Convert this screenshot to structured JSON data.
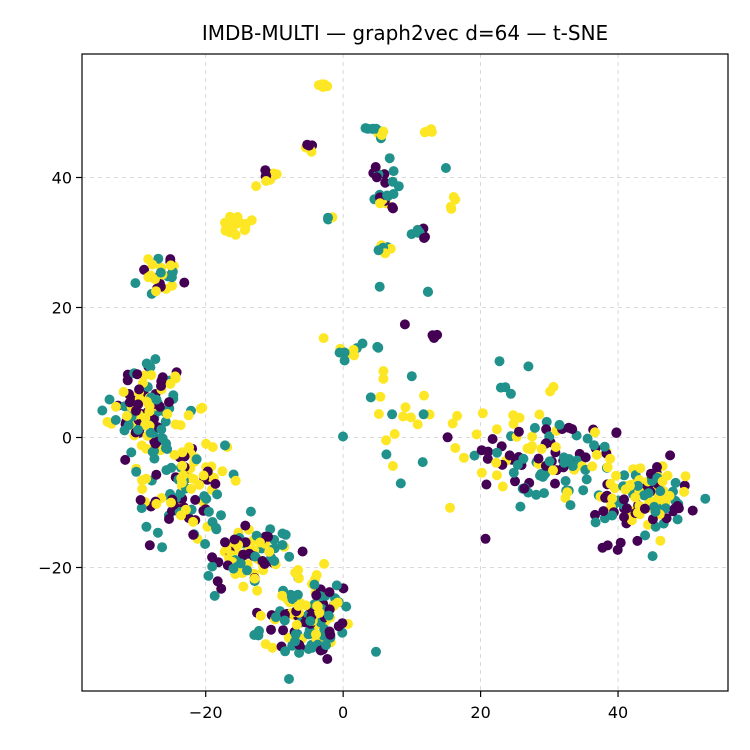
{
  "chart_data": {
    "type": "scatter",
    "title": "IMDB-MULTI — graph2vec d=64 — t-SNE",
    "xlabel": "",
    "ylabel": "",
    "xlim": [
      -38,
      56
    ],
    "ylim": [
      -39,
      59
    ],
    "xticks": [
      -20,
      0,
      20,
      40
    ],
    "yticks": [
      -20,
      0,
      20,
      40
    ],
    "x_tick_labels": [
      "−20",
      "0",
      "20",
      "40"
    ],
    "y_tick_labels": [
      "−20",
      "0",
      "20",
      "40"
    ],
    "grid": true,
    "legend": "none",
    "series": [
      {
        "color": "#440154",
        "clusters": [
          {
            "cx": -27,
            "cy": 25,
            "sx": 1.4,
            "sy": 1.6,
            "n": 8
          },
          {
            "cx": -11,
            "cy": 40.5,
            "sx": 1.0,
            "sy": 0.6,
            "n": 5
          },
          {
            "cx": -5,
            "cy": 44.8,
            "sx": 0.4,
            "sy": 0.3,
            "n": 3
          },
          {
            "cx": 5,
            "cy": 40,
            "sx": 1.2,
            "sy": 1.8,
            "n": 6
          },
          {
            "cx": 7,
            "cy": 36,
            "sx": 0.5,
            "sy": 1.0,
            "n": 3
          },
          {
            "cx": 12,
            "cy": 31,
            "sx": 0.6,
            "sy": 0.8,
            "n": 3
          },
          {
            "cx": 13,
            "cy": 15,
            "sx": 0.6,
            "sy": 0.8,
            "n": 3
          },
          {
            "cx": 9,
            "cy": 17,
            "sx": 0.3,
            "sy": 0.3,
            "n": 1
          },
          {
            "cx": -28,
            "cy": 5,
            "sx": 2.5,
            "sy": 3.5,
            "n": 35
          },
          {
            "cx": -24,
            "cy": -8,
            "sx": 3.0,
            "sy": 4.0,
            "n": 30
          },
          {
            "cx": -14,
            "cy": -18,
            "sx": 3.5,
            "sy": 3.0,
            "n": 28
          },
          {
            "cx": -5,
            "cy": -28,
            "sx": 3.5,
            "sy": 3.5,
            "n": 35
          },
          {
            "cx": 30,
            "cy": -3,
            "sx": 6.0,
            "sy": 3.0,
            "n": 40
          },
          {
            "cx": 44,
            "cy": -10,
            "sx": 4.0,
            "sy": 3.0,
            "n": 30
          },
          {
            "cx": 40,
            "cy": -16,
            "sx": 2.0,
            "sy": 1.2,
            "n": 5
          }
        ]
      },
      {
        "color": "#21918c",
        "clusters": [
          {
            "cx": -27,
            "cy": 25,
            "sx": 1.3,
            "sy": 1.5,
            "n": 8
          },
          {
            "cx": 5,
            "cy": 47,
            "sx": 0.8,
            "sy": 0.5,
            "n": 8
          },
          {
            "cx": 5,
            "cy": 39,
            "sx": 1.3,
            "sy": 1.7,
            "n": 10
          },
          {
            "cx": 11,
            "cy": 31.5,
            "sx": 0.6,
            "sy": 0.7,
            "n": 4
          },
          {
            "cx": 6,
            "cy": 29,
            "sx": 0.7,
            "sy": 0.6,
            "n": 4
          },
          {
            "cx": 15,
            "cy": 41.5,
            "sx": 0.2,
            "sy": 0.2,
            "n": 1
          },
          {
            "cx": 5,
            "cy": 23,
            "sx": 0.2,
            "sy": 0.2,
            "n": 1
          },
          {
            "cx": 12,
            "cy": 22.5,
            "sx": 0.4,
            "sy": 0.3,
            "n": 2
          },
          {
            "cx": 2,
            "cy": 13,
            "sx": 1.5,
            "sy": 1.5,
            "n": 6
          },
          {
            "cx": 6,
            "cy": 14,
            "sx": 0.5,
            "sy": 0.5,
            "n": 2
          },
          {
            "cx": -2,
            "cy": 34,
            "sx": 0.3,
            "sy": 0.3,
            "n": 2
          },
          {
            "cx": -28,
            "cy": 4,
            "sx": 2.8,
            "sy": 4.0,
            "n": 40
          },
          {
            "cx": -23,
            "cy": -9,
            "sx": 3.0,
            "sy": 4.0,
            "n": 35
          },
          {
            "cx": -13,
            "cy": -19,
            "sx": 3.5,
            "sy": 3.0,
            "n": 32
          },
          {
            "cx": -5,
            "cy": -29,
            "sx": 3.5,
            "sy": 3.5,
            "n": 45
          },
          {
            "cx": 14,
            "cy": 3,
            "sx": 6.0,
            "sy": 4.0,
            "n": 15
          },
          {
            "cx": 32,
            "cy": -5,
            "sx": 6.0,
            "sy": 3.5,
            "n": 40
          },
          {
            "cx": 45,
            "cy": -10,
            "sx": 4.0,
            "sy": 3.0,
            "n": 35
          }
        ]
      },
      {
        "color": "#fde725",
        "clusters": [
          {
            "cx": -3,
            "cy": 54.5,
            "sx": 0.4,
            "sy": 0.4,
            "n": 6
          },
          {
            "cx": -26,
            "cy": 25,
            "sx": 1.3,
            "sy": 1.5,
            "n": 12
          },
          {
            "cx": -16,
            "cy": 32.5,
            "sx": 0.9,
            "sy": 0.7,
            "n": 20
          },
          {
            "cx": -11,
            "cy": 40,
            "sx": 0.8,
            "sy": 0.7,
            "n": 5
          },
          {
            "cx": -5,
            "cy": 44.5,
            "sx": 0.3,
            "sy": 0.3,
            "n": 3
          },
          {
            "cx": 5,
            "cy": 47,
            "sx": 0.6,
            "sy": 0.4,
            "n": 5
          },
          {
            "cx": 12.5,
            "cy": 47,
            "sx": 0.4,
            "sy": 0.3,
            "n": 4
          },
          {
            "cx": 16,
            "cy": 36,
            "sx": 0.4,
            "sy": 0.5,
            "n": 4
          },
          {
            "cx": 6,
            "cy": 36,
            "sx": 0.4,
            "sy": 0.5,
            "n": 3
          },
          {
            "cx": 6,
            "cy": 29.5,
            "sx": 0.6,
            "sy": 0.6,
            "n": 3
          },
          {
            "cx": -2,
            "cy": 34,
            "sx": 0.3,
            "sy": 0.3,
            "n": 1
          },
          {
            "cx": -3,
            "cy": 15,
            "sx": 0.2,
            "sy": 0.2,
            "n": 1
          },
          {
            "cx": 1,
            "cy": 13,
            "sx": 1.0,
            "sy": 2.0,
            "n": 4
          },
          {
            "cx": -28,
            "cy": 5,
            "sx": 2.5,
            "sy": 3.0,
            "n": 45
          },
          {
            "cx": -23,
            "cy": -7,
            "sx": 3.0,
            "sy": 3.5,
            "n": 45
          },
          {
            "cx": -14,
            "cy": -19,
            "sx": 3.0,
            "sy": 3.0,
            "n": 35
          },
          {
            "cx": -5,
            "cy": -26,
            "sx": 3.0,
            "sy": 3.0,
            "n": 45
          },
          {
            "cx": 10,
            "cy": 3,
            "sx": 4.0,
            "sy": 3.0,
            "n": 15
          },
          {
            "cx": 25,
            "cy": -2,
            "sx": 6.0,
            "sy": 4.0,
            "n": 30
          },
          {
            "cx": 42,
            "cy": -8,
            "sx": 4.5,
            "sy": 3.0,
            "n": 50
          }
        ]
      }
    ]
  }
}
